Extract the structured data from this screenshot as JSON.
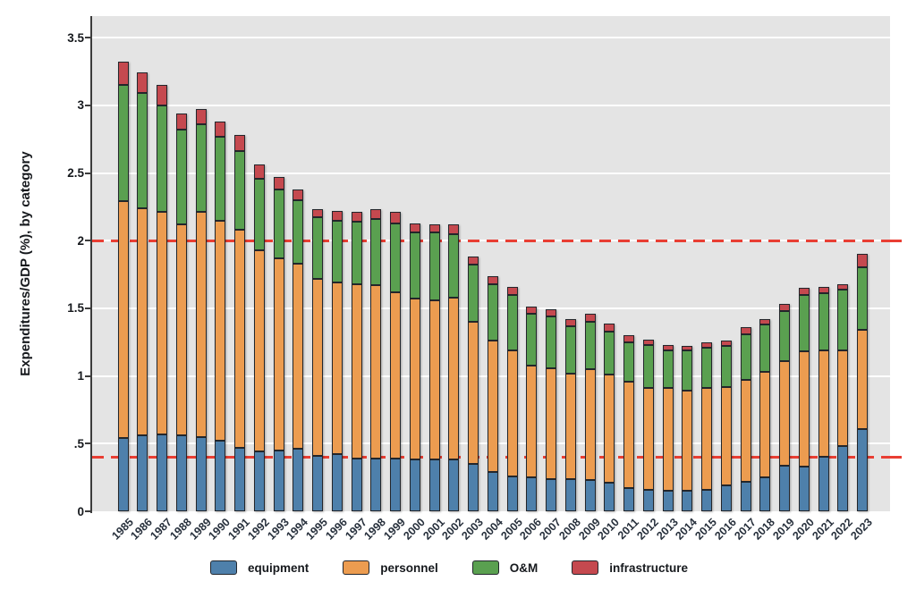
{
  "chart_data": {
    "type": "bar",
    "stacked": true,
    "title": "",
    "xlabel": "",
    "ylabel": "Expenditures/GDP (%), by category",
    "ylim": [
      0,
      3.66
    ],
    "grid": true,
    "legend_position": "bottom",
    "categories": [
      1985,
      1986,
      1987,
      1988,
      1989,
      1990,
      1991,
      1992,
      1993,
      1994,
      1995,
      1996,
      1997,
      1998,
      1999,
      2000,
      2001,
      2002,
      2003,
      2004,
      2005,
      2006,
      2007,
      2008,
      2009,
      2010,
      2011,
      2012,
      2013,
      2014,
      2015,
      2016,
      2017,
      2018,
      2019,
      2020,
      2021,
      2022,
      2023
    ],
    "series": [
      {
        "name": "equipment",
        "color": "#4e80ab",
        "values": [
          0.54,
          0.56,
          0.57,
          0.56,
          0.55,
          0.52,
          0.47,
          0.44,
          0.45,
          0.46,
          0.41,
          0.42,
          0.39,
          0.39,
          0.39,
          0.38,
          0.38,
          0.38,
          0.35,
          0.29,
          0.26,
          0.25,
          0.24,
          0.24,
          0.23,
          0.21,
          0.17,
          0.16,
          0.15,
          0.15,
          0.16,
          0.19,
          0.22,
          0.25,
          0.34,
          0.33,
          0.4,
          0.48,
          0.61
        ]
      },
      {
        "name": "personnel",
        "color": "#ec9c50",
        "values": [
          1.75,
          1.68,
          1.64,
          1.56,
          1.66,
          1.63,
          1.61,
          1.49,
          1.42,
          1.37,
          1.31,
          1.27,
          1.29,
          1.28,
          1.23,
          1.19,
          1.18,
          1.2,
          1.05,
          0.97,
          0.93,
          0.83,
          0.82,
          0.78,
          0.82,
          0.8,
          0.79,
          0.75,
          0.76,
          0.74,
          0.75,
          0.73,
          0.75,
          0.78,
          0.77,
          0.85,
          0.79,
          0.71,
          0.73
        ]
      },
      {
        "name": "O&M",
        "color": "#5aa050",
        "values": [
          0.86,
          0.85,
          0.79,
          0.7,
          0.65,
          0.62,
          0.58,
          0.53,
          0.51,
          0.47,
          0.45,
          0.46,
          0.46,
          0.49,
          0.51,
          0.49,
          0.5,
          0.47,
          0.42,
          0.42,
          0.41,
          0.38,
          0.38,
          0.35,
          0.35,
          0.32,
          0.29,
          0.32,
          0.28,
          0.3,
          0.3,
          0.3,
          0.34,
          0.35,
          0.37,
          0.42,
          0.42,
          0.45,
          0.46
        ]
      },
      {
        "name": "infrastructure",
        "color": "#c5494f",
        "values": [
          0.17,
          0.15,
          0.15,
          0.12,
          0.11,
          0.11,
          0.12,
          0.1,
          0.09,
          0.08,
          0.06,
          0.07,
          0.07,
          0.07,
          0.08,
          0.07,
          0.06,
          0.07,
          0.06,
          0.06,
          0.06,
          0.05,
          0.05,
          0.05,
          0.06,
          0.06,
          0.05,
          0.04,
          0.04,
          0.03,
          0.04,
          0.04,
          0.05,
          0.04,
          0.05,
          0.05,
          0.05,
          0.04,
          0.1
        ]
      }
    ],
    "y_ticks": [
      {
        "label": "0",
        "value": 0
      },
      {
        "label": ".5",
        "value": 0.5
      },
      {
        "label": "1",
        "value": 1
      },
      {
        "label": "1.5",
        "value": 1.5
      },
      {
        "label": "2",
        "value": 2
      },
      {
        "label": "2.5",
        "value": 2.5
      },
      {
        "label": "3",
        "value": 3
      },
      {
        "label": "3.5",
        "value": 3.5
      }
    ],
    "reference_lines": [
      {
        "value": 2.0,
        "style": "dashed",
        "color": "#e93e33"
      },
      {
        "value": 0.4,
        "style": "dashed",
        "color": "#e93e33"
      }
    ]
  }
}
